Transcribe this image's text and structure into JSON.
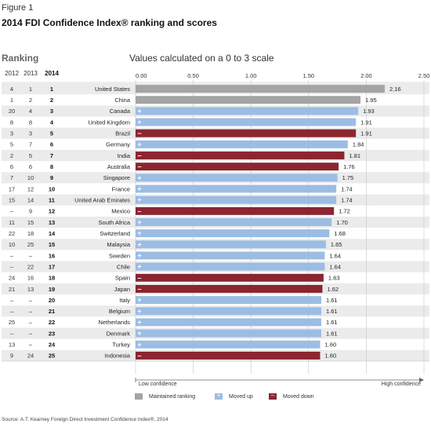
{
  "figure_label": "Figure 1",
  "title": "2014 FDI Confidence Index® ranking and scores",
  "ranking_header": "Ranking",
  "scale_header": "Values calculated on a 0 to 3 scale",
  "year_headers": [
    "2012",
    "2013",
    "2014"
  ],
  "axis_left_label": "Low confidence",
  "axis_right_label": "High confidence",
  "legend": {
    "maintained": "Maintained ranking",
    "up": "Moved up",
    "down": "Moved down"
  },
  "source": "Source: A.T. Kearney Foreign Direct Investment Confidence Index®, 2014",
  "colors": {
    "maintained": "#a4a4a4",
    "up": "#9cbde3",
    "down": "#8b2630",
    "row_alt": "#ebebeb",
    "grid": "#c6c6c6"
  },
  "chart_data": {
    "type": "bar",
    "orientation": "horizontal",
    "xlim": [
      0,
      2.5
    ],
    "xticks": [
      "0.00",
      "0.50",
      "1.00",
      "1.50",
      "2.00",
      "2.50"
    ],
    "grid": true,
    "rows": [
      {
        "r2012": "4",
        "r2013": "1",
        "r2014": "1",
        "country": "United States",
        "value": 2.16,
        "label": "2.16",
        "status": "maintained",
        "mark": ""
      },
      {
        "r2012": "1",
        "r2013": "2",
        "r2014": "2",
        "country": "China",
        "value": 1.95,
        "label": "1.95",
        "status": "maintained",
        "mark": ""
      },
      {
        "r2012": "20",
        "r2013": "4",
        "r2014": "3",
        "country": "Canada",
        "value": 1.93,
        "label": "1.93",
        "status": "up",
        "mark": "+"
      },
      {
        "r2012": "8",
        "r2013": "8",
        "r2014": "4",
        "country": "United Kingdom",
        "value": 1.91,
        "label": "1.91",
        "status": "up",
        "mark": "+"
      },
      {
        "r2012": "3",
        "r2013": "3",
        "r2014": "5",
        "country": "Brazil",
        "value": 1.91,
        "label": "1.91",
        "status": "down",
        "mark": "–"
      },
      {
        "r2012": "5",
        "r2013": "7",
        "r2014": "6",
        "country": "Germany",
        "value": 1.84,
        "label": "1.84",
        "status": "up",
        "mark": "+"
      },
      {
        "r2012": "2",
        "r2013": "5",
        "r2014": "7",
        "country": "India",
        "value": 1.81,
        "label": "1.81",
        "status": "down",
        "mark": "–"
      },
      {
        "r2012": "6",
        "r2013": "6",
        "r2014": "8",
        "country": "Australia",
        "value": 1.76,
        "label": "1.76",
        "status": "down",
        "mark": "–"
      },
      {
        "r2012": "7",
        "r2013": "10",
        "r2014": "9",
        "country": "Singapore",
        "value": 1.75,
        "label": "1.75",
        "status": "up",
        "mark": "+"
      },
      {
        "r2012": "17",
        "r2013": "12",
        "r2014": "10",
        "country": "France",
        "value": 1.74,
        "label": "1.74",
        "status": "up",
        "mark": "+"
      },
      {
        "r2012": "15",
        "r2013": "14",
        "r2014": "11",
        "country": "United Arab Emirates",
        "value": 1.74,
        "label": "1.74",
        "status": "up",
        "mark": "+"
      },
      {
        "r2012": "–",
        "r2013": "9",
        "r2014": "12",
        "country": "Mexico",
        "value": 1.72,
        "label": "1.72",
        "status": "down",
        "mark": "–"
      },
      {
        "r2012": "11",
        "r2013": "15",
        "r2014": "13",
        "country": "South Africa",
        "value": 1.7,
        "label": "1.70",
        "status": "up",
        "mark": "+"
      },
      {
        "r2012": "22",
        "r2013": "18",
        "r2014": "14",
        "country": "Switzerland",
        "value": 1.68,
        "label": "1.68",
        "status": "up",
        "mark": "+"
      },
      {
        "r2012": "10",
        "r2013": "25",
        "r2014": "15",
        "country": "Malaysia",
        "value": 1.65,
        "label": "1.65",
        "status": "up",
        "mark": "+"
      },
      {
        "r2012": "–",
        "r2013": "–",
        "r2014": "16",
        "country": "Sweden",
        "value": 1.64,
        "label": "1.64",
        "status": "up",
        "mark": "+"
      },
      {
        "r2012": "–",
        "r2013": "22",
        "r2014": "17",
        "country": "Chile",
        "value": 1.64,
        "label": "1.64",
        "status": "up",
        "mark": "+"
      },
      {
        "r2012": "24",
        "r2013": "16",
        "r2014": "18",
        "country": "Spain",
        "value": 1.63,
        "label": "1.63",
        "status": "down",
        "mark": "–"
      },
      {
        "r2012": "21",
        "r2013": "13",
        "r2014": "19",
        "country": "Japan",
        "value": 1.62,
        "label": "1.62",
        "status": "down",
        "mark": "–"
      },
      {
        "r2012": "–",
        "r2013": "–",
        "r2014": "20",
        "country": "Italy",
        "value": 1.61,
        "label": "1.61",
        "status": "up",
        "mark": "+"
      },
      {
        "r2012": "–",
        "r2013": "–",
        "r2014": "21",
        "country": "Belgium",
        "value": 1.61,
        "label": "1.61",
        "status": "up",
        "mark": "+"
      },
      {
        "r2012": "25",
        "r2013": "–",
        "r2014": "22",
        "country": "Netherlands",
        "value": 1.61,
        "label": "1.61",
        "status": "up",
        "mark": "+"
      },
      {
        "r2012": "–",
        "r2013": "–",
        "r2014": "23",
        "country": "Denmark",
        "value": 1.61,
        "label": "1.61",
        "status": "up",
        "mark": "+"
      },
      {
        "r2012": "13",
        "r2013": "–",
        "r2014": "24",
        "country": "Turkey",
        "value": 1.6,
        "label": "1.60",
        "status": "up",
        "mark": "+"
      },
      {
        "r2012": "9",
        "r2013": "24",
        "r2014": "25",
        "country": "Indonesia",
        "value": 1.6,
        "label": "1.60",
        "status": "down",
        "mark": "–"
      }
    ]
  }
}
